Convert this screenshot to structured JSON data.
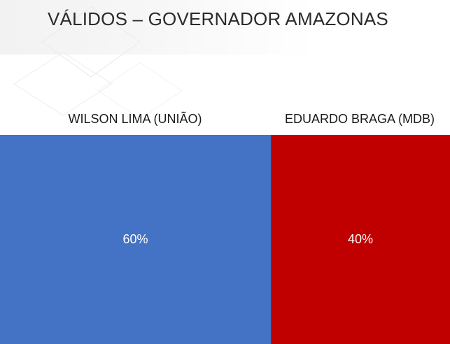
{
  "title": "VÁLIDOS – GOVERNADOR AMAZONAS",
  "chart_data": {
    "type": "bar",
    "orientation": "horizontal-100%-stacked",
    "categories": [
      "WILSON LIMA (UNIÃO)",
      "EDUARDO BRAGA (MDB)"
    ],
    "values": [
      60,
      40
    ],
    "labels": [
      "60%",
      "40%"
    ],
    "colors": [
      "#4472c4",
      "#c00000"
    ],
    "title": "VÁLIDOS – GOVERNADOR AMAZONAS",
    "xlabel": "",
    "ylabel": "",
    "ylim": [
      0,
      100
    ],
    "grid": false,
    "legend": "none"
  }
}
